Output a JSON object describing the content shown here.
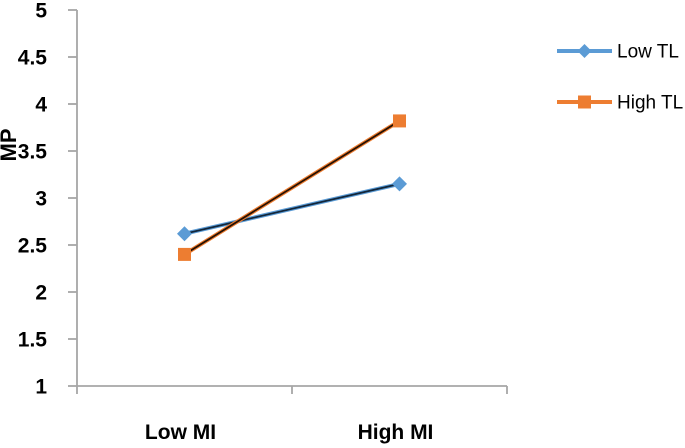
{
  "chart_data": {
    "type": "line",
    "title": "",
    "categories": [
      "Low MI",
      "High MI"
    ],
    "series": [
      {
        "name": "Low TL",
        "values": [
          2.62,
          3.15
        ],
        "color": "#5B9BD5",
        "overlay_line_color": "#12263A",
        "marker": "diamond"
      },
      {
        "name": "High TL",
        "values": [
          2.4,
          3.82
        ],
        "color": "#ED7D31",
        "overlay_line_color": "#261103",
        "marker": "square"
      }
    ],
    "xlabel": "",
    "ylabel": "MP",
    "ylim": [
      1,
      5
    ],
    "ytick_labels": [
      "1",
      "1.5",
      "2",
      "2.5",
      "3",
      "3.5",
      "4",
      "4.5",
      "5"
    ],
    "yticks": [
      1,
      1.5,
      2,
      2.5,
      3,
      3.5,
      4,
      4.5,
      5
    ],
    "grid": false,
    "legend_position": "right",
    "axis_color": "#A6A6A6",
    "text_color": "#000000",
    "background": "#FFFFFF"
  }
}
